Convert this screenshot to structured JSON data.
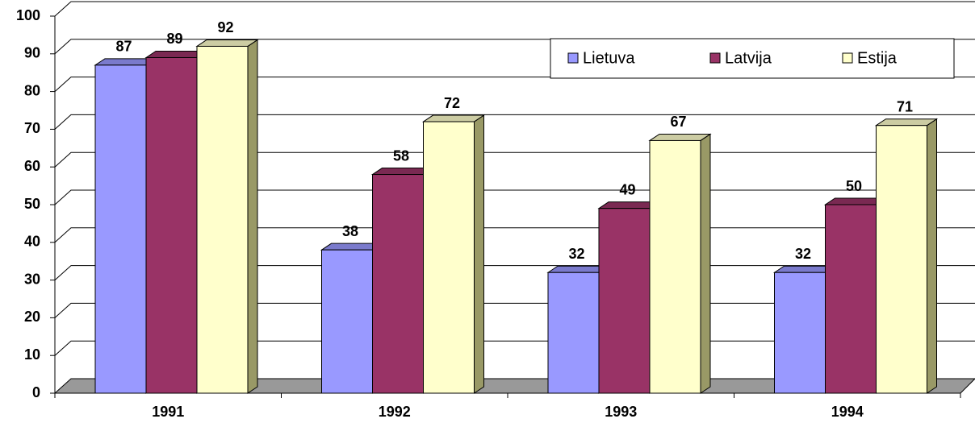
{
  "chart_data": {
    "type": "bar3d",
    "categories": [
      "1991",
      "1992",
      "1993",
      "1994"
    ],
    "series": [
      {
        "name": "Lietuva",
        "color": "#9999ff",
        "values": [
          87,
          38,
          32,
          32
        ]
      },
      {
        "name": "Latvija",
        "color": "#993366",
        "values": [
          89,
          58,
          49,
          50
        ]
      },
      {
        "name": "Estija",
        "color": "#ffffcc",
        "values": [
          92,
          72,
          67,
          71
        ]
      }
    ],
    "ylim": [
      0,
      100
    ],
    "yticks": [
      0,
      10,
      20,
      30,
      40,
      50,
      60,
      70,
      80,
      90,
      100
    ],
    "grid": true,
    "legend": "top-right"
  }
}
